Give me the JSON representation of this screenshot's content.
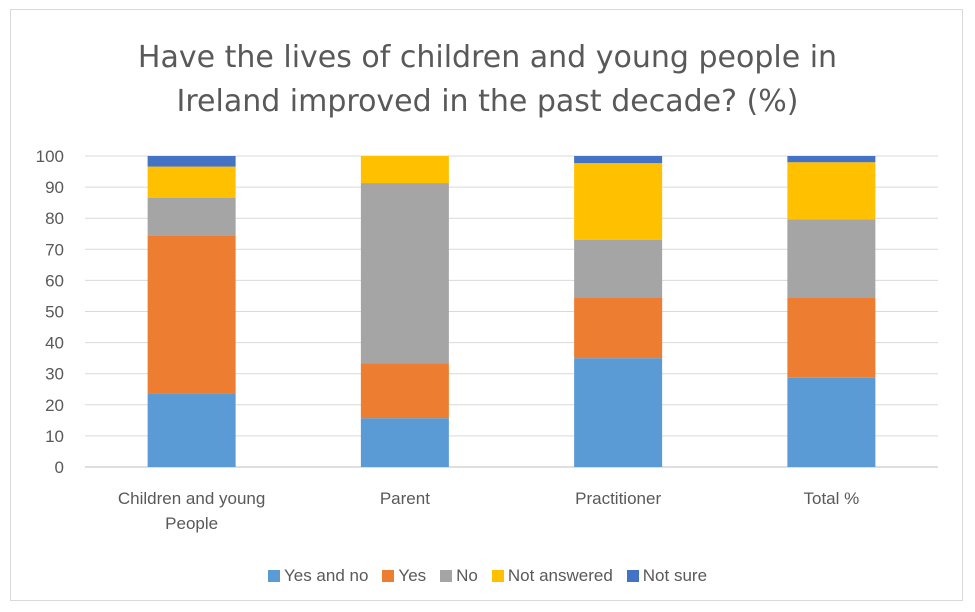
{
  "chart_data": {
    "type": "bar",
    "stacked": true,
    "title_lines": [
      "Have the lives of children and young people in",
      "Ireland improved in the past decade? (%)"
    ],
    "categories": [
      [
        "Children and young",
        "People"
      ],
      [
        "Parent"
      ],
      [
        "Practitioner"
      ],
      [
        "Total  %"
      ]
    ],
    "series": [
      {
        "name": "Yes and no",
        "color": "#5b9bd5",
        "values": [
          23.6,
          15.7,
          35.0,
          28.7
        ]
      },
      {
        "name": "Yes",
        "color": "#ed7d31",
        "values": [
          50.9,
          17.6,
          19.6,
          25.9
        ]
      },
      {
        "name": "No",
        "color": "#a5a5a5",
        "values": [
          12.0,
          58.0,
          18.4,
          25.0
        ]
      },
      {
        "name": "Not answered",
        "color": "#ffc000",
        "values": [
          10.1,
          8.7,
          24.7,
          18.4
        ]
      },
      {
        "name": "Not sure",
        "color": "#4472c4",
        "values": [
          3.4,
          0.0,
          2.3,
          2.0
        ]
      }
    ],
    "ylim": [
      0,
      100
    ],
    "yticks": [
      0,
      10,
      20,
      30,
      40,
      50,
      60,
      70,
      80,
      90,
      100
    ],
    "grid": true,
    "legend_position": "bottom"
  }
}
